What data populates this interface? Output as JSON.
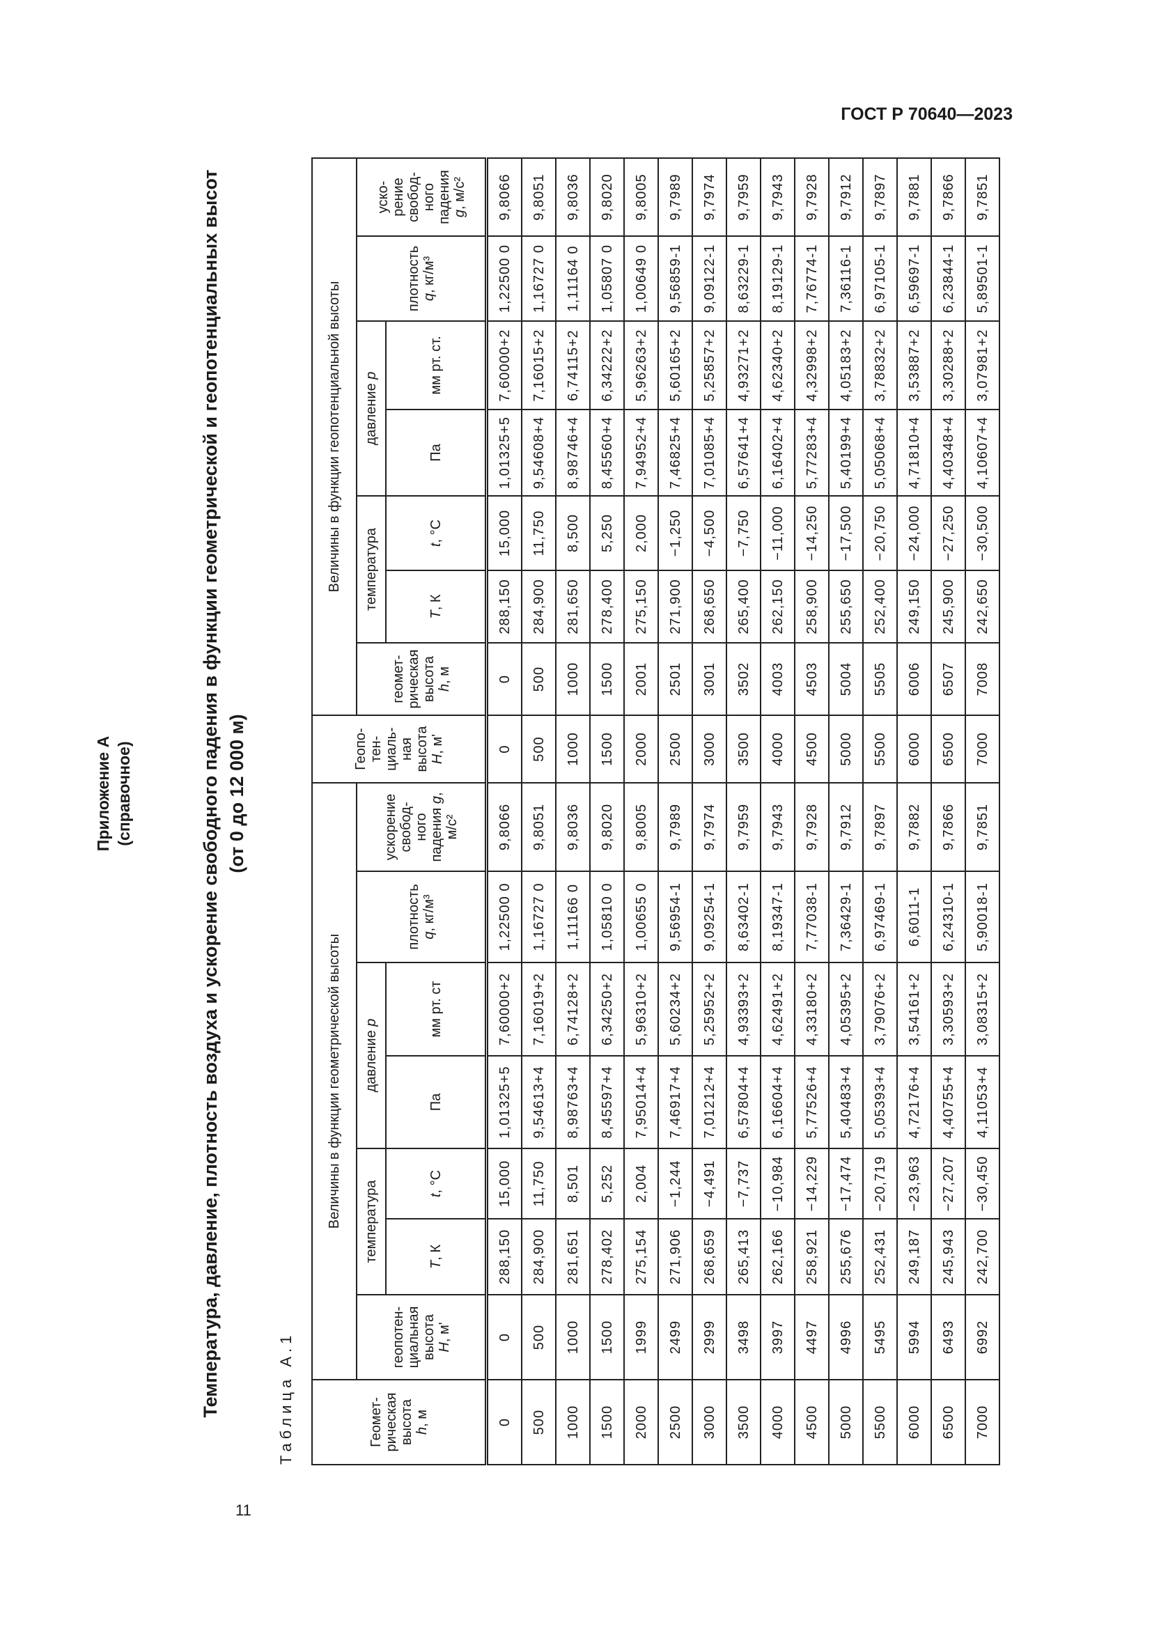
{
  "header": {
    "doc_code": "ГОСТ Р 70640—2023"
  },
  "footer": {
    "page_number": "11"
  },
  "annex": {
    "title": "Приложение А",
    "subtitle": "(справочное)"
  },
  "table_title": "Температура, давление, плотность воздуха и ускорение свободного падения в функции геометрической и геопотенциальных высот",
  "table_subtitle": "(от 0 до 12 000 м)",
  "table_label": "Таблица А.1",
  "table": {
    "group_geometric": "Величины в функции геометрической высоты",
    "group_geopotential": "Величины в функции геопотенциальной высоты",
    "col_h_geom": {
      "label": "Геомет-\nрическая\nвысота",
      "var": "h",
      "unit": ", м"
    },
    "col_H_geop_left": {
      "label": "геопотен-\nциальная\nвысота",
      "var": "H",
      "unit": ", м'"
    },
    "col_H_geop_main": {
      "label": "Геопо-\nтен-\nциаль-\nная\nвысота",
      "var": "H",
      "unit": ", м'"
    },
    "col_h_geom_right": {
      "label": "геомет-\nрическая\nвысота",
      "var": "h",
      "unit": ", м"
    },
    "temperature": "температура",
    "pressure": {
      "label": "давление ",
      "var": "p"
    },
    "T_K": {
      "var": "T",
      "unit": ", К"
    },
    "t_C": {
      "var": "t",
      "unit": ", °С"
    },
    "Pa": "Па",
    "mmHg_left": "мм рт. ст",
    "mmHg_right": "мм рт. ст.",
    "density": {
      "label": "плотность\n",
      "var": "q",
      "unit": ", кг/м³"
    },
    "gravity_left": {
      "label": "ускорение\nсвобод-\nного\nпадения ",
      "var": "g",
      "unit": ",\nм/с²"
    },
    "gravity_right": {
      "label": "уско-\nрение\nсвобод-\nного\nпадения\n",
      "var": "g",
      "unit": ", м/с²"
    },
    "rows": [
      [
        "0",
        "0",
        "288,150",
        "15,000",
        "1,01325+5",
        "7,60000+2",
        "1,22500 0",
        "9,8066",
        "0",
        "0",
        "288,150",
        "15,000",
        "1,01325+5",
        "7,60000+2",
        "1,22500 0",
        "9,8066"
      ],
      [
        "500",
        "500",
        "284,900",
        "11,750",
        "9,54613+4",
        "7,16019+2",
        "1,16727 0",
        "9,8051",
        "500",
        "500",
        "284,900",
        "11,750",
        "9,54608+4",
        "7,16015+2",
        "1,16727 0",
        "9,8051"
      ],
      [
        "1000",
        "1000",
        "281,651",
        "8,501",
        "8,98763+4",
        "6,74128+2",
        "1,11166 0",
        "9,8036",
        "1000",
        "1000",
        "281,650",
        "8,500",
        "8,98746+4",
        "6,74115+2",
        "1,11164 0",
        "9,8036"
      ],
      [
        "1500",
        "1500",
        "278,402",
        "5,252",
        "8,45597+4",
        "6,34250+2",
        "1,05810 0",
        "9,8020",
        "1500",
        "1500",
        "278,400",
        "5,250",
        "8,45560+4",
        "6,34222+2",
        "1,05807 0",
        "9,8020"
      ],
      [
        "2000",
        "1999",
        "275,154",
        "2,004",
        "7,95014+4",
        "5,96310+2",
        "1,00655 0",
        "9,8005",
        "2000",
        "2001",
        "275,150",
        "2,000",
        "7,94952+4",
        "5,96263+2",
        "1,00649 0",
        "9,8005"
      ],
      [
        "2500",
        "2499",
        "271,906",
        "−1,244",
        "7,46917+4",
        "5,60234+2",
        "9,56954-1",
        "9,7989",
        "2500",
        "2501",
        "271,900",
        "−1,250",
        "7,46825+4",
        "5,60165+2",
        "9,56859-1",
        "9,7989"
      ],
      [
        "3000",
        "2999",
        "268,659",
        "−4,491",
        "7,01212+4",
        "5,25952+2",
        "9,09254-1",
        "9,7974",
        "3000",
        "3001",
        "268,650",
        "−4,500",
        "7,01085+4",
        "5,25857+2",
        "9,09122-1",
        "9,7974"
      ],
      [
        "3500",
        "3498",
        "265,413",
        "−7,737",
        "6,57804+4",
        "4,93393+2",
        "8,63402-1",
        "9,7959",
        "3500",
        "3502",
        "265,400",
        "−7,750",
        "6,57641+4",
        "4,93271+2",
        "8,63229-1",
        "9,7959"
      ],
      [
        "4000",
        "3997",
        "262,166",
        "−10,984",
        "6,16604+4",
        "4,62491+2",
        "8,19347-1",
        "9,7943",
        "4000",
        "4003",
        "262,150",
        "−11,000",
        "6,16402+4",
        "4,62340+2",
        "8,19129-1",
        "9,7943"
      ],
      [
        "4500",
        "4497",
        "258,921",
        "−14,229",
        "5,77526+4",
        "4,33180+2",
        "7,77038-1",
        "9,7928",
        "4500",
        "4503",
        "258,900",
        "−14,250",
        "5,77283+4",
        "4,32998+2",
        "7,76774-1",
        "9,7928"
      ],
      [
        "5000",
        "4996",
        "255,676",
        "−17,474",
        "5,40483+4",
        "4,05395+2",
        "7,36429-1",
        "9,7912",
        "5000",
        "5004",
        "255,650",
        "−17,500",
        "5,40199+4",
        "4,05183+2",
        "7,36116-1",
        "9,7912"
      ],
      [
        "5500",
        "5495",
        "252,431",
        "−20,719",
        "5,05393+4",
        "3,79076+2",
        "6,97469-1",
        "9,7897",
        "5500",
        "5505",
        "252,400",
        "−20,750",
        "5,05068+4",
        "3,78832+2",
        "6,97105-1",
        "9,7897"
      ],
      [
        "6000",
        "5994",
        "249,187",
        "−23,963",
        "4,72176+4",
        "3,54161+2",
        "6,6011-1",
        "9,7882",
        "6000",
        "6006",
        "249,150",
        "−24,000",
        "4,71810+4",
        "3,53887+2",
        "6,59697-1",
        "9,7881"
      ],
      [
        "6500",
        "6493",
        "245,943",
        "−27,207",
        "4,40755+4",
        "3,30593+2",
        "6,24310-1",
        "9,7866",
        "6500",
        "6507",
        "245,900",
        "−27,250",
        "4,40348+4",
        "3,30288+2",
        "6,23844-1",
        "9,7866"
      ],
      [
        "7000",
        "6992",
        "242,700",
        "−30,450",
        "4,11053+4",
        "3,08315+2",
        "5,90018-1",
        "9,7851",
        "7000",
        "7008",
        "242,650",
        "−30,500",
        "4,10607+4",
        "3,07981+2",
        "5,89501-1",
        "9,7851"
      ]
    ]
  }
}
